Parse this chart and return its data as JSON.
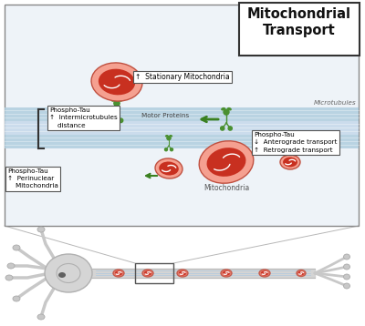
{
  "title": "Mitochondrial\nTransport",
  "bg_outer": "#f5f5f5",
  "bg_main_box": "#eef3f8",
  "microtubule_colors": [
    "#b0cedf",
    "#c5d9ea",
    "#b0cedf"
  ],
  "mito_outer": "#f5a090",
  "mito_inner": "#c83020",
  "motor_color": "#4a9030",
  "arrow_color": "#3a8020",
  "label_stationary": "↑  Stationary Mitochondria",
  "label_mitochondria": "Mitochondria",
  "label_motor": "Motor Proteins",
  "label_microtubules": "Microtubules",
  "phospho1": [
    "Phospho-Tau",
    "↑  Intermicrotubules",
    "    distance"
  ],
  "phospho2": [
    "Phospho-Tau",
    "↑  Perinuclear",
    "    Mitochondria"
  ],
  "phospho3": [
    "Phospho-Tau",
    "↓  Anterograde transport",
    "↑  Retrograde transport"
  ],
  "neuron_color": "#d0d0d0",
  "neuron_edge": "#aaaaaa"
}
